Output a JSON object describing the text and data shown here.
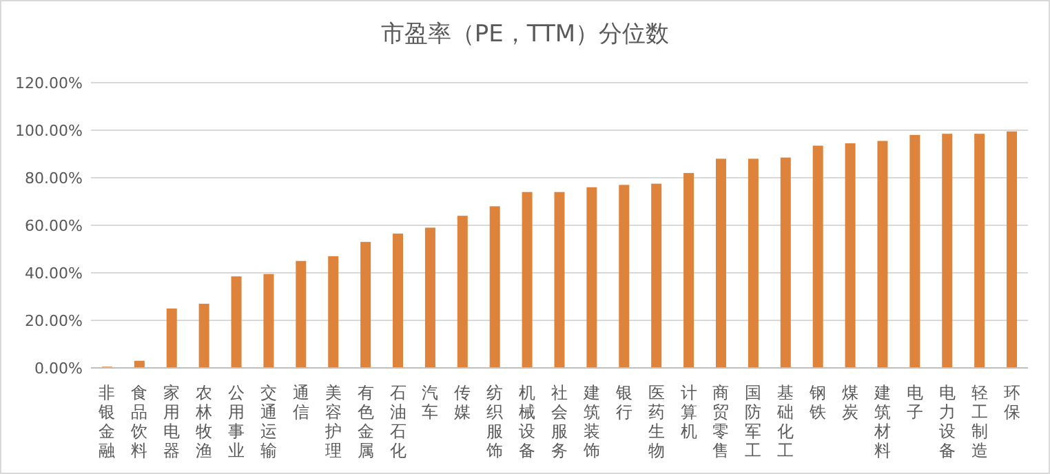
{
  "chart_data": {
    "type": "bar",
    "title": "市盈率（PE，TTM）分位数",
    "categories": [
      "非银金融",
      "食品饮料",
      "家用电器",
      "农林牧渔",
      "公用事业",
      "交通运输",
      "通信",
      "美容护理",
      "有色金属",
      "石油石化",
      "汽车",
      "传媒",
      "纺织服饰",
      "机械设备",
      "社会服务",
      "建筑装饰",
      "银行",
      "医药生物",
      "计算机",
      "商贸零售",
      "国防军工",
      "基础化工",
      "钢铁",
      "煤炭",
      "建筑材料",
      "电子",
      "电力设备",
      "轻工制造",
      "环保"
    ],
    "values": [
      0.5,
      3,
      25,
      27,
      38.5,
      39.5,
      45,
      47,
      53,
      56.5,
      59,
      64,
      68,
      74,
      74,
      76,
      77,
      77.5,
      82,
      88,
      88,
      88.5,
      93.5,
      94.5,
      95.5,
      98,
      98.5,
      98.5,
      99.5
    ],
    "color": "#dd833c",
    "ylim": [
      0,
      120
    ],
    "yticks": [
      {
        "value": 0,
        "label": "0.00%"
      },
      {
        "value": 20,
        "label": "20.00%"
      },
      {
        "value": 40,
        "label": "40.00%"
      },
      {
        "value": 60,
        "label": "60.00%"
      },
      {
        "value": 80,
        "label": "80.00%"
      },
      {
        "value": 100,
        "label": "100.00%"
      },
      {
        "value": 120,
        "label": "120.00%"
      }
    ],
    "grid": true
  }
}
